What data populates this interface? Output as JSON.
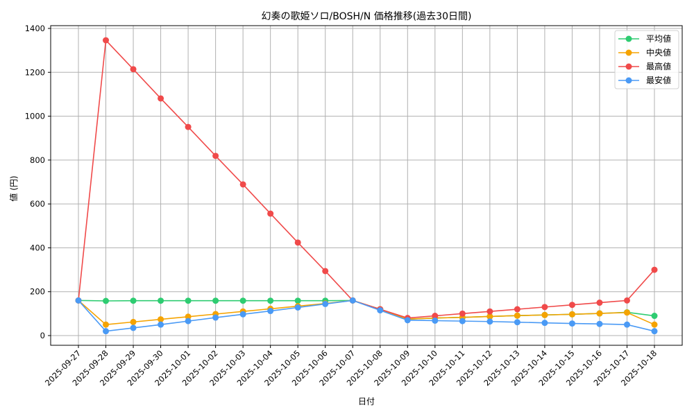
{
  "chart_data": {
    "type": "line",
    "title": "幻奏の歌姫ソロ/BOSH/N 価格推移(過去30日間)",
    "xlabel": "日付",
    "ylabel": "値 (円)",
    "ylim": [
      -45,
      1415
    ],
    "yticks": [
      0,
      200,
      400,
      600,
      800,
      1000,
      1200,
      1400
    ],
    "grid": true,
    "legend_position": "upper right",
    "categories": [
      "2025-09-27",
      "2025-09-28",
      "2025-09-29",
      "2025-09-30",
      "2025-10-01",
      "2025-10-02",
      "2025-10-03",
      "2025-10-04",
      "2025-10-05",
      "2025-10-06",
      "2025-10-07",
      "2025-10-08",
      "2025-10-09",
      "2025-10-10",
      "2025-10-11",
      "2025-10-12",
      "2025-10-13",
      "2025-10-14",
      "2025-10-15",
      "2025-10-16",
      "2025-10-17",
      "2025-10-18"
    ],
    "series": [
      {
        "name": "平均値",
        "color": "#2ecc71",
        "values": [
          160,
          158,
          159,
          159,
          159,
          159,
          159,
          159,
          159,
          159,
          160,
          120,
          75,
          80,
          83,
          87,
          91,
          94,
          97,
          101,
          106,
          90
        ]
      },
      {
        "name": "中央値",
        "color": "#f5a300",
        "values": [
          160,
          50,
          62,
          74,
          86,
          98,
          110,
          122,
          134,
          146,
          160,
          120,
          75,
          80,
          83,
          87,
          91,
          94,
          97,
          101,
          105,
          50
        ]
      },
      {
        "name": "最高値",
        "color": "#f04a4a",
        "values": [
          160,
          1346,
          1214,
          1081,
          951,
          819,
          689,
          556,
          424,
          294,
          160,
          120,
          80,
          90,
          100,
          110,
          120,
          130,
          140,
          150,
          160,
          300
        ]
      },
      {
        "name": "最安値",
        "color": "#4a9af5",
        "values": [
          160,
          20,
          35,
          50,
          66,
          82,
          97,
          112,
          128,
          144,
          160,
          115,
          70,
          68,
          66,
          64,
          61,
          58,
          55,
          53,
          50,
          20
        ]
      }
    ]
  }
}
